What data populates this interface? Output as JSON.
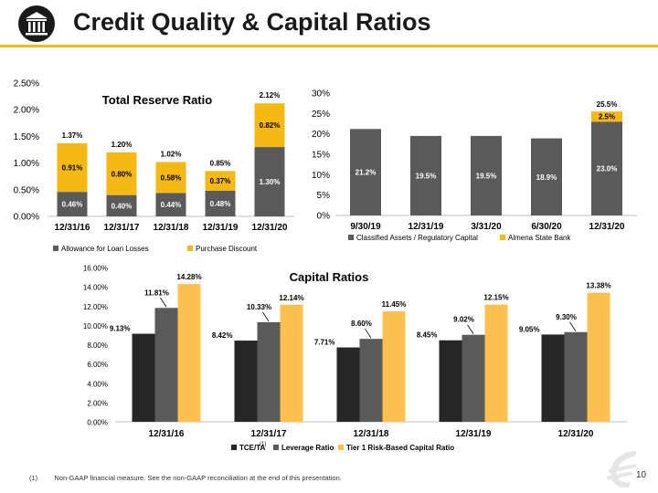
{
  "header": {
    "title": "Credit Quality & Capital Ratios",
    "icon": "bank-building-icon"
  },
  "colors": {
    "dark": "#5a5a5a",
    "black": "#262626",
    "gold": "#f5b915",
    "light_gold": "#fcc04e"
  },
  "chart_data": [
    {
      "type": "bar",
      "stacked": true,
      "title": "Total Reserve Ratio",
      "categories": [
        "12/31/16",
        "12/31/17",
        "12/31/18",
        "12/31/19",
        "12/31/20"
      ],
      "series": [
        {
          "name": "Allowance for Loan Losses",
          "values": [
            0.46,
            0.4,
            0.44,
            0.48,
            1.3
          ],
          "labels": [
            "0.46%",
            "0.40%",
            "0.44%",
            "0.48%",
            "1.30%"
          ]
        },
        {
          "name": "Purchase Discount",
          "values": [
            0.91,
            0.8,
            0.58,
            0.37,
            0.82
          ],
          "labels": [
            "0.91%",
            "0.80%",
            "0.58%",
            "0.37%",
            "0.82%"
          ]
        }
      ],
      "totals": [
        "1.37%",
        "1.20%",
        "1.02%",
        "0.85%",
        "2.12%"
      ],
      "ylim": [
        0,
        2.5
      ],
      "yticks": [
        "0.00%",
        "0.50%",
        "1.00%",
        "1.50%",
        "2.00%",
        "2.50%"
      ],
      "legend_position": "bottom"
    },
    {
      "type": "bar",
      "stacked": true,
      "title": "",
      "categories": [
        "9/30/19",
        "12/31/19",
        "3/31/20",
        "6/30/20",
        "12/31/20"
      ],
      "series": [
        {
          "name": "Classified Assets / Regulatory Capital",
          "values": [
            21.2,
            19.5,
            19.5,
            18.9,
            23.0
          ],
          "labels": [
            "21.2%",
            "19.5%",
            "19.5%",
            "18.9%",
            "23.0%"
          ]
        },
        {
          "name": "Almena State Bank",
          "values": [
            0,
            0,
            0,
            0,
            2.5
          ],
          "labels": [
            "",
            "",
            "",
            "",
            "2.5%"
          ]
        }
      ],
      "totals": [
        "",
        "",
        "",
        "",
        "25.5%"
      ],
      "ylim": [
        0,
        30
      ],
      "yticks": [
        "0%",
        "5%",
        "10%",
        "15%",
        "20%",
        "25%",
        "30%"
      ],
      "legend_position": "bottom"
    },
    {
      "type": "bar",
      "stacked": false,
      "title": "Capital Ratios",
      "categories": [
        "12/31/16",
        "12/31/17",
        "12/31/18",
        "12/31/19",
        "12/31/20"
      ],
      "series": [
        {
          "name": "TCE/TA",
          "sup": "(1)",
          "values": [
            9.13,
            8.42,
            7.71,
            8.45,
            9.05
          ],
          "labels": [
            "9.13%",
            "8.42%",
            "7.71%",
            "8.45%",
            "9.05%"
          ]
        },
        {
          "name": "Leverage Ratio",
          "values": [
            11.81,
            10.33,
            8.6,
            9.02,
            9.3
          ],
          "labels": [
            "11.81%",
            "10.33%",
            "8.60%",
            "9.02%",
            "9.30%"
          ]
        },
        {
          "name": "Tier 1 Risk-Based Capital Ratio",
          "values": [
            14.28,
            12.14,
            11.45,
            12.15,
            13.38
          ],
          "labels": [
            "14.28%",
            "12.14%",
            "11.45%",
            "12.15%",
            "13.38%"
          ]
        }
      ],
      "ylim": [
        0,
        16
      ],
      "yticks": [
        "0.00%",
        "2.00%",
        "4.00%",
        "6.00%",
        "8.00%",
        "10.00%",
        "12.00%",
        "14.00%",
        "16.00%"
      ],
      "legend_position": "bottom"
    }
  ],
  "footnote": {
    "marker": "(1)",
    "text": "Non-GAAP financial measure. See the non-GAAP reconciliation at the end of this presentation."
  },
  "page_number": "10"
}
